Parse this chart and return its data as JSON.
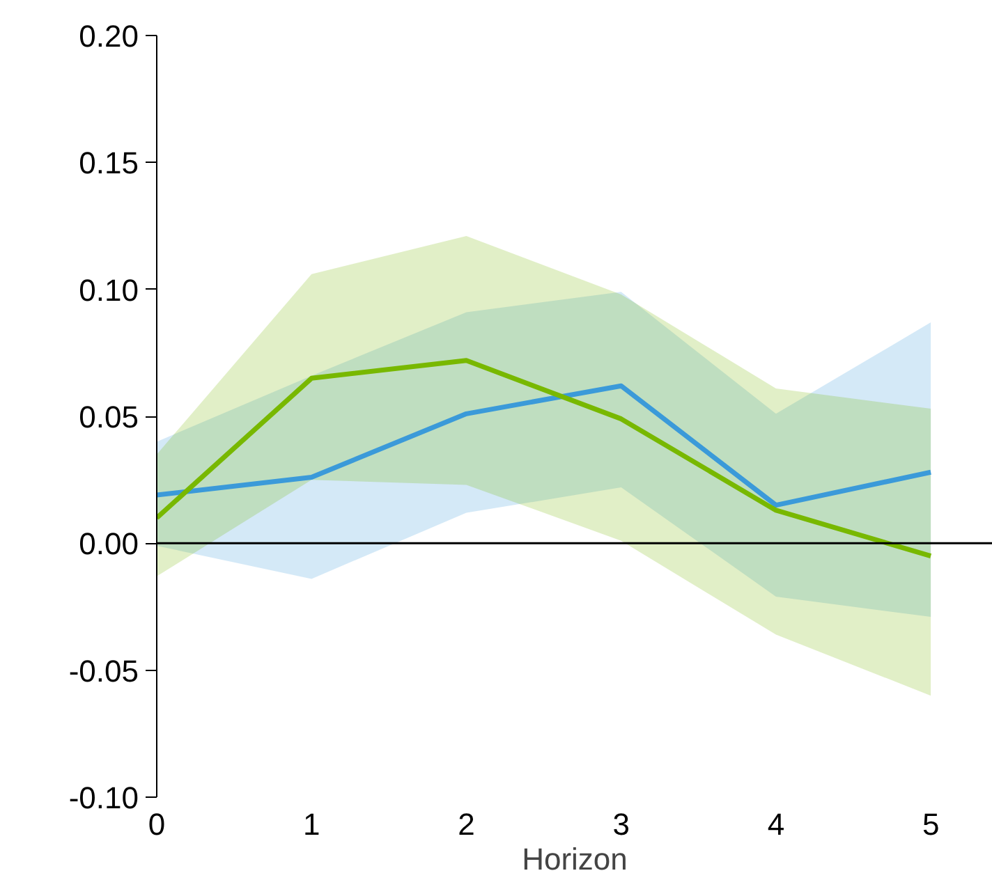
{
  "chart_data": {
    "type": "line",
    "xlabel": "Horizon",
    "x": [
      0,
      1,
      2,
      3,
      4,
      5
    ],
    "series": [
      {
        "color": "#3b9ad9",
        "values": [
          0.019,
          0.026,
          0.051,
          0.062,
          0.015,
          0.028
        ],
        "lower": [
          -0.001,
          -0.014,
          0.012,
          0.022,
          -0.021,
          -0.029
        ],
        "upper": [
          0.04,
          0.066,
          0.091,
          0.099,
          0.051,
          0.087
        ]
      },
      {
        "color": "#78b800",
        "values": [
          0.01,
          0.065,
          0.072,
          0.049,
          0.013,
          -0.005
        ],
        "lower": [
          -0.013,
          0.025,
          0.023,
          0.001,
          -0.036,
          -0.06
        ],
        "upper": [
          0.035,
          0.106,
          0.121,
          0.098,
          0.061,
          0.053
        ]
      }
    ],
    "xlim": [
      0,
      5.4
    ],
    "xticks": [
      0,
      1,
      2,
      3,
      4,
      5
    ],
    "ylim": [
      -0.1,
      0.2
    ],
    "yticks": [
      {
        "value": -0.1,
        "label": "-0.10"
      },
      {
        "value": -0.05,
        "label": "-0.05"
      },
      {
        "value": 0,
        "label": "0.00"
      },
      {
        "value": 0.05,
        "label": "0.05"
      },
      {
        "value": 0.1,
        "label": "0.10"
      },
      {
        "value": 0.15,
        "label": "0.15"
      },
      {
        "value": 0.2,
        "label": "0.20"
      }
    ],
    "ref_lines": [
      {
        "axis": "y",
        "value": 0,
        "color": "#000000"
      }
    ],
    "grid": false,
    "line_style": "solid",
    "marker": "none"
  }
}
